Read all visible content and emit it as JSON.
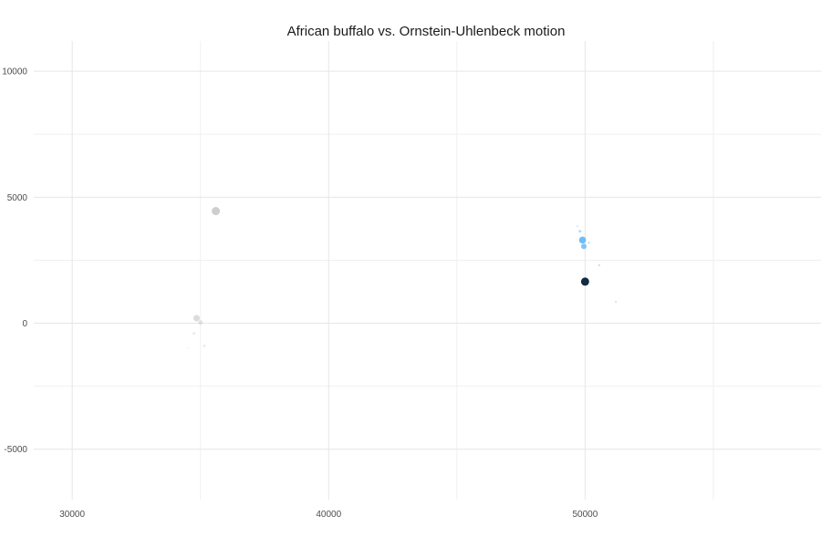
{
  "chart_data": {
    "type": "scatter",
    "title": "African buffalo vs. Ornstein-Uhlenbeck motion",
    "xlabel": "",
    "ylabel": "",
    "xlim": [
      28500,
      59200
    ],
    "ylim": [
      -7000,
      11200
    ],
    "grid": true,
    "legend": "none",
    "x_ticks": [
      {
        "value": 30000,
        "label": "30000"
      },
      {
        "value": 40000,
        "label": "40000"
      },
      {
        "value": 50000,
        "label": "50000"
      }
    ],
    "y_ticks": [
      {
        "value": 10000,
        "label": "10000"
      },
      {
        "value": 5000,
        "label": "5000"
      },
      {
        "value": 0,
        "label": "0"
      },
      {
        "value": -5000,
        "label": "-5000"
      }
    ],
    "x_minor": [
      35000,
      45000,
      55000
    ],
    "y_minor": [
      7500,
      2500,
      -2500
    ],
    "series": [
      {
        "color": "#bdbdbd",
        "points": [
          {
            "x": 35600,
            "y": 4450,
            "size": 4.5,
            "opacity": 0.75
          },
          {
            "x": 34850,
            "y": 200,
            "size": 3.5,
            "opacity": 0.55
          },
          {
            "x": 35000,
            "y": 30,
            "size": 2.5,
            "opacity": 0.4
          },
          {
            "x": 34750,
            "y": -400,
            "size": 1.5,
            "opacity": 0.3
          },
          {
            "x": 35150,
            "y": -900,
            "size": 1.5,
            "opacity": 0.3
          },
          {
            "x": 34500,
            "y": -1000,
            "size": 1.0,
            "opacity": 0.2
          }
        ]
      },
      {
        "color": "#56B1F7",
        "points": [
          {
            "x": 49900,
            "y": 3300,
            "size": 3.8,
            "opacity": 0.85
          },
          {
            "x": 49950,
            "y": 3050,
            "size": 3.0,
            "opacity": 0.75
          },
          {
            "x": 49800,
            "y": 3650,
            "size": 1.5,
            "opacity": 0.45
          },
          {
            "x": 50150,
            "y": 3200,
            "size": 1.2,
            "opacity": 0.4
          },
          {
            "x": 50550,
            "y": 2300,
            "size": 1.2,
            "opacity": 0.35
          },
          {
            "x": 51200,
            "y": 850,
            "size": 1.2,
            "opacity": 0.3
          },
          {
            "x": 49700,
            "y": 3850,
            "size": 1.0,
            "opacity": 0.3
          }
        ]
      },
      {
        "color": "#132B43",
        "points": [
          {
            "x": 50000,
            "y": 1650,
            "size": 4.5,
            "opacity": 1.0
          }
        ]
      }
    ]
  }
}
